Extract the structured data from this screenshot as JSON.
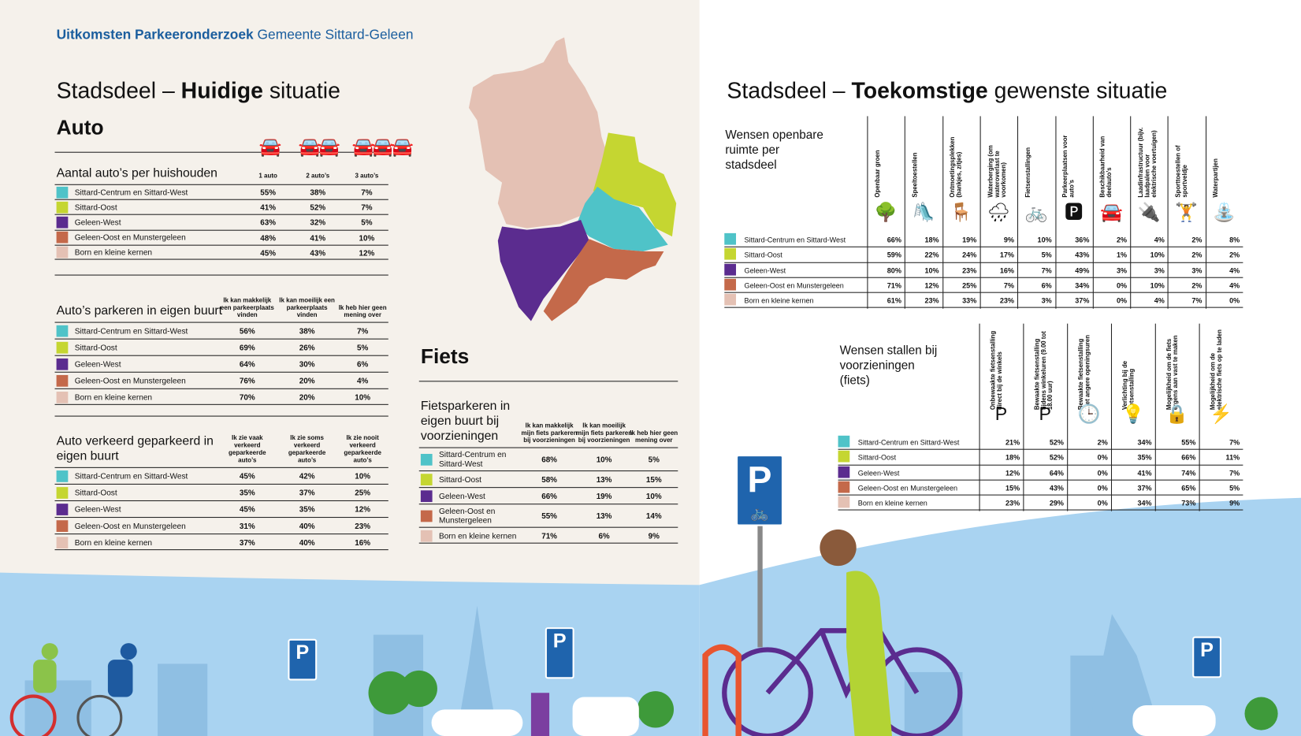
{
  "header": {
    "title_bold": "Uitkomsten Parkeeronderzoek",
    "title_rest": "Gemeente Sittard-Geleen"
  },
  "colors": {
    "accent_blue": "#1b5e9e",
    "sky": "#a9d3f1",
    "beige": "#f5f1eb"
  },
  "regions": [
    {
      "name": "Sittard-Centrum en Sittard-West",
      "color": "#4fc3c8"
    },
    {
      "name": "Sittard-Oost",
      "color": "#c5d631"
    },
    {
      "name": "Geleen-West",
      "color": "#5b2c8f"
    },
    {
      "name": "Geleen-Oost en Munstergeleen",
      "color": "#c4694a"
    },
    {
      "name": "Born en kleine kernen",
      "color": "#e4c1b4"
    }
  ],
  "left": {
    "heading_prefix": "Stadsdeel – ",
    "heading_bold": "Huidige",
    "heading_rest": " situatie",
    "auto_title": "Auto",
    "tables": [
      {
        "title": "Aantal auto’s per huishouden",
        "columns": [
          "1 auto",
          "2 auto’s",
          "3 auto’s"
        ],
        "rows": [
          [
            "55%",
            "38%",
            "7%"
          ],
          [
            "41%",
            "52%",
            "7%"
          ],
          [
            "63%",
            "32%",
            "5%"
          ],
          [
            "48%",
            "41%",
            "10%"
          ],
          [
            "45%",
            "43%",
            "12%"
          ]
        ]
      },
      {
        "title": "Auto’s parkeren in eigen buurt",
        "columns": [
          "Ik kan makkelijk een parkeerplaats vinden",
          "Ik kan moeilijk een parkeerplaats vinden",
          "Ik heb hier geen mening over"
        ],
        "rows": [
          [
            "56%",
            "38%",
            "7%"
          ],
          [
            "69%",
            "26%",
            "5%"
          ],
          [
            "64%",
            "30%",
            "6%"
          ],
          [
            "76%",
            "20%",
            "4%"
          ],
          [
            "70%",
            "20%",
            "10%"
          ]
        ]
      },
      {
        "title": "Auto verkeerd geparkeerd in eigen buurt",
        "columns": [
          "Ik zie vaak verkeerd geparkeerde auto’s",
          "Ik zie soms verkeerd geparkeerde auto’s",
          "Ik zie nooit verkeerd geparkeerde auto’s"
        ],
        "rows": [
          [
            "45%",
            "42%",
            "10%"
          ],
          [
            "35%",
            "37%",
            "25%"
          ],
          [
            "45%",
            "35%",
            "12%"
          ],
          [
            "31%",
            "40%",
            "23%"
          ],
          [
            "37%",
            "40%",
            "16%"
          ]
        ]
      }
    ],
    "fiets_title": "Fiets",
    "fiets_table": {
      "title": "Fietsparkeren in eigen buurt bij voorzieningen",
      "columns": [
        "Ik kan makkelijk mijn fiets parkeren bij voorzieningen",
        "Ik kan moeilijk mijn fiets parkeren bij voorzieningen",
        "Ik heb hier geen mening over"
      ],
      "region_labels": [
        "Sittard-Centrum en Sittard-West",
        "Sittard-Oost",
        "Geleen-West",
        "Geleen-Oost en Munstergeleen",
        "Born en kleine kernen"
      ],
      "rows": [
        [
          "68%",
          "10%",
          "5%"
        ],
        [
          "58%",
          "13%",
          "15%"
        ],
        [
          "66%",
          "19%",
          "10%"
        ],
        [
          "55%",
          "13%",
          "14%"
        ],
        [
          "71%",
          "6%",
          "9%"
        ]
      ]
    }
  },
  "right": {
    "heading_prefix": "Stadsdeel – ",
    "heading_bold": "Toekomstige",
    "heading_rest": " gewenste situatie",
    "openbare": {
      "title": "Wensen openbare ruimte per stadsdeel",
      "columns": [
        {
          "label": "Openbaar groen",
          "icon": "tree-icon",
          "glyph": "🌳"
        },
        {
          "label": "Speeltoestellen",
          "icon": "playground-slide-icon",
          "glyph": "🛝"
        },
        {
          "label": "Ontmoetingsplekken (bankjes, zitjes)",
          "icon": "bench-icon",
          "glyph": "🪑"
        },
        {
          "label": "Waterberging (om wateroverlast te voorkomen)",
          "icon": "rain-water-icon",
          "glyph": "🌧"
        },
        {
          "label": "Fietsenstallingen",
          "icon": "bicycle-rack-icon",
          "glyph": "🚲"
        },
        {
          "label": "Parkeerplaatsen voor auto’s",
          "icon": "car-parking-icon",
          "glyph": "🅿"
        },
        {
          "label": "Beschikbaarheid van deelauto’s",
          "icon": "shared-car-icon",
          "glyph": "🚘"
        },
        {
          "label": "Laadinfrastructuur (bijv. laadpalen voor elektrische voertuigen)",
          "icon": "charging-station-icon",
          "glyph": "🔌"
        },
        {
          "label": "Sporttoestellen of sportveldje",
          "icon": "sport-bar-icon",
          "glyph": "🏋"
        },
        {
          "label": "Waterpartijen",
          "icon": "fountain-icon",
          "glyph": "⛲"
        }
      ],
      "rows": [
        [
          "66%",
          "18%",
          "19%",
          "9%",
          "10%",
          "36%",
          "2%",
          "4%",
          "2%",
          "8%"
        ],
        [
          "59%",
          "22%",
          "24%",
          "17%",
          "5%",
          "43%",
          "1%",
          "10%",
          "2%",
          "2%"
        ],
        [
          "80%",
          "10%",
          "23%",
          "16%",
          "7%",
          "49%",
          "3%",
          "3%",
          "3%",
          "4%"
        ],
        [
          "71%",
          "12%",
          "25%",
          "7%",
          "6%",
          "34%",
          "0%",
          "10%",
          "2%",
          "4%"
        ],
        [
          "61%",
          "23%",
          "33%",
          "23%",
          "3%",
          "37%",
          "0%",
          "4%",
          "7%",
          "0%"
        ]
      ]
    },
    "stallen": {
      "title": "Wensen stallen bij voorzieningen (fiets)",
      "columns": [
        {
          "label": "Onbewaakte fietsenstalling direct bij de winkels",
          "icon": "bike-parking-sign-icon",
          "glyph": "P"
        },
        {
          "label": "Bewaakte fietsenstalling tijdens winkeluren (9.00 tot 18.00 uur)",
          "icon": "guarded-bike-parking-icon",
          "glyph": "P"
        },
        {
          "label": "Bewaakte fietsenstalling met angere openingsuren",
          "icon": "clock-24-icon",
          "glyph": "🕒"
        },
        {
          "label": "Verlichting bij de fietsenstalling",
          "icon": "lamp-bike-icon",
          "glyph": "💡"
        },
        {
          "label": "Mogelijkheid om de fiets ergens aan vast te maken",
          "icon": "bike-lock-icon",
          "glyph": "🔒"
        },
        {
          "label": "Mogelijkheid om de elektrische fiets op te laden",
          "icon": "ebike-charge-icon",
          "glyph": "⚡"
        }
      ],
      "rows": [
        [
          "21%",
          "52%",
          "2%",
          "34%",
          "55%",
          "7%"
        ],
        [
          "18%",
          "52%",
          "0%",
          "35%",
          "66%",
          "11%"
        ],
        [
          "12%",
          "64%",
          "0%",
          "41%",
          "74%",
          "7%"
        ],
        [
          "15%",
          "43%",
          "0%",
          "37%",
          "65%",
          "5%"
        ],
        [
          "23%",
          "29%",
          "0%",
          "34%",
          "73%",
          "9%"
        ]
      ]
    }
  },
  "signs": {
    "parking": "P"
  }
}
